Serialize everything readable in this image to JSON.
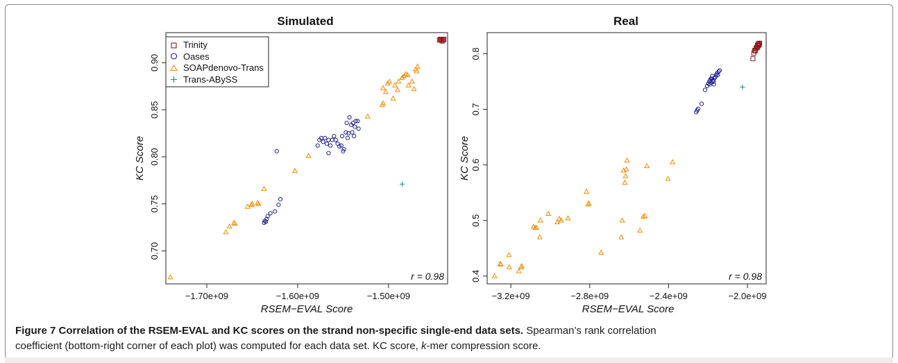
{
  "legend": {
    "items": [
      {
        "label": "Trinity",
        "color": "#8b1a1a",
        "marker": "square"
      },
      {
        "label": "Oases",
        "color": "#1f1f8f",
        "marker": "circle"
      },
      {
        "label": "SOAPdenovo-Trans",
        "color": "#f08c00",
        "marker": "triangle"
      },
      {
        "label": "Trans-ABySS",
        "color": "#0e8a8a",
        "marker": "plus"
      }
    ]
  },
  "caption": {
    "label": "Figure 7",
    "title": "Correlation of the RSEM-EVAL and KC scores on the strand non-specific single-end data sets.",
    "text_line1": "Spearman’s rank correlation",
    "text_line2": "coefficient (bottom-right corner of each plot) was computed for each data set. KC score, ",
    "kmer": "k",
    "text_tail": "-mer compression score."
  },
  "chart_data": [
    {
      "type": "scatter",
      "title": "Simulated",
      "xlabel": "RSEM−EVAL Score",
      "ylabel": "KC Score",
      "xlim": [
        -1745000000.0,
        -1435000000.0
      ],
      "ylim": [
        0.665,
        0.932
      ],
      "xticks": [
        -1700000000.0,
        -1600000000.0,
        -1500000000.0
      ],
      "xticklabels": [
        "−1.70e+09",
        "−1.60e+09",
        "−1.50e+09"
      ],
      "yticks": [
        0.7,
        0.75,
        0.8,
        0.85,
        0.9
      ],
      "yticklabels": [
        "0.70",
        "0.75",
        "0.80",
        "0.85",
        "0.90"
      ],
      "annotation": "r = 0.98",
      "legend": "top-left",
      "series": [
        {
          "name": "Trinity",
          "points": [
            [
              -1443000000.0,
              0.925
            ],
            [
              -1442000000.0,
              0.924
            ],
            [
              -1441000000.0,
              0.925
            ],
            [
              -1440000000.0,
              0.924
            ],
            [
              -1444000000.0,
              0.924
            ],
            [
              -1441000000.0,
              0.923
            ],
            [
              -1439000000.0,
              0.925
            ],
            [
              -1442000000.0,
              0.925
            ]
          ]
        },
        {
          "name": "Oases",
          "points": [
            [
              -1623000000.0,
              0.806
            ],
            [
              -1619000000.0,
              0.755
            ],
            [
              -1621000000.0,
              0.749
            ],
            [
              -1625000000.0,
              0.742
            ],
            [
              -1630000000.0,
              0.74
            ],
            [
              -1633000000.0,
              0.737
            ],
            [
              -1634000000.0,
              0.734
            ],
            [
              -1636000000.0,
              0.732
            ],
            [
              -1637000000.0,
              0.73
            ],
            [
              -1635000000.0,
              0.731
            ],
            [
              -1576000000.0,
              0.818
            ],
            [
              -1574000000.0,
              0.82
            ],
            [
              -1572000000.0,
              0.816
            ],
            [
              -1570000000.0,
              0.82
            ],
            [
              -1568000000.0,
              0.814
            ],
            [
              -1566000000.0,
              0.818
            ],
            [
              -1564000000.0,
              0.812
            ],
            [
              -1562000000.0,
              0.818
            ],
            [
              -1560000000.0,
              0.822
            ],
            [
              -1558000000.0,
              0.818
            ],
            [
              -1556000000.0,
              0.814
            ],
            [
              -1554000000.0,
              0.811
            ],
            [
              -1552000000.0,
              0.812
            ],
            [
              -1551000000.0,
              0.822
            ],
            [
              -1549000000.0,
              0.808
            ],
            [
              -1547000000.0,
              0.826
            ],
            [
              -1546000000.0,
              0.836
            ],
            [
              -1545000000.0,
              0.82
            ],
            [
              -1543000000.0,
              0.842
            ],
            [
              -1541000000.0,
              0.834
            ],
            [
              -1539000000.0,
              0.836
            ],
            [
              -1537000000.0,
              0.832
            ],
            [
              -1536000000.0,
              0.838
            ],
            [
              -1534000000.0,
              0.838
            ],
            [
              -1533000000.0,
              0.83
            ],
            [
              -1544000000.0,
              0.825
            ],
            [
              -1566000000.0,
              0.804
            ],
            [
              -1578000000.0,
              0.812
            ],
            [
              -1550000000.0,
              0.806
            ],
            [
              -1540000000.0,
              0.826
            ],
            [
              -1538000000.0,
              0.822
            ]
          ]
        },
        {
          "name": "SOAPdenovo-Trans",
          "points": [
            [
              -1740000000.0,
              0.672
            ],
            [
              -1679000000.0,
              0.72
            ],
            [
              -1675000000.0,
              0.726
            ],
            [
              -1670000000.0,
              0.73
            ],
            [
              -1669000000.0,
              0.729
            ],
            [
              -1655000000.0,
              0.747
            ],
            [
              -1651000000.0,
              0.749
            ],
            [
              -1650000000.0,
              0.75
            ],
            [
              -1644000000.0,
              0.751
            ],
            [
              -1643000000.0,
              0.75
            ],
            [
              -1637000000.0,
              0.766
            ],
            [
              -1603000000.0,
              0.785
            ],
            [
              -1588000000.0,
              0.801
            ],
            [
              -1523000000.0,
              0.843
            ],
            [
              -1507000000.0,
              0.855
            ],
            [
              -1506000000.0,
              0.857
            ],
            [
              -1506000000.0,
              0.873
            ],
            [
              -1503000000.0,
              0.869
            ],
            [
              -1501000000.0,
              0.878
            ],
            [
              -1499000000.0,
              0.88
            ],
            [
              -1495000000.0,
              0.862
            ],
            [
              -1493000000.0,
              0.876
            ],
            [
              -1490000000.0,
              0.871
            ],
            [
              -1489000000.0,
              0.88
            ],
            [
              -1485000000.0,
              0.884
            ],
            [
              -1483000000.0,
              0.886
            ],
            [
              -1481000000.0,
              0.888
            ],
            [
              -1479000000.0,
              0.887
            ],
            [
              -1478000000.0,
              0.876
            ],
            [
              -1474000000.0,
              0.88
            ],
            [
              -1472000000.0,
              0.872
            ],
            [
              -1470000000.0,
              0.893
            ],
            [
              -1468000000.0,
              0.896
            ],
            [
              -1469000000.0,
              0.891
            ],
            [
              -1485000000.0,
              0.884
            ]
          ]
        },
        {
          "name": "Trans-ABySS",
          "points": [
            [
              -1485000000.0,
              0.771
            ]
          ]
        }
      ]
    },
    {
      "type": "scatter",
      "title": "Real",
      "xlabel": "RSEM−EVAL Score",
      "ylabel": "KC Score",
      "xlim": [
        -3320000000.0,
        -1905000000.0
      ],
      "ylim": [
        0.386,
        0.838
      ],
      "xticks": [
        -3200000000.0,
        -2800000000.0,
        -2400000000.0,
        -2000000000.0
      ],
      "xticklabels": [
        "−3.2e+09",
        "−2.8e+09",
        "−2.4e+09",
        "−2.0e+09"
      ],
      "yticks": [
        0.4,
        0.5,
        0.6,
        0.7,
        0.8
      ],
      "yticklabels": [
        "0.4",
        "0.5",
        "0.6",
        "0.7",
        "0.8"
      ],
      "annotation": "r = 0.98",
      "series": [
        {
          "name": "Trinity",
          "points": [
            [
              -1972000000.0,
              0.791
            ],
            [
              -1968000000.0,
              0.801
            ],
            [
              -1963000000.0,
              0.806
            ],
            [
              -1960000000.0,
              0.805
            ],
            [
              -1956000000.0,
              0.81
            ],
            [
              -1952000000.0,
              0.812
            ],
            [
              -1949000000.0,
              0.815
            ],
            [
              -1946000000.0,
              0.817
            ],
            [
              -1943000000.0,
              0.818
            ],
            [
              -1940000000.0,
              0.816
            ],
            [
              -1938000000.0,
              0.819
            ],
            [
              -1950000000.0,
              0.811
            ],
            [
              -1945000000.0,
              0.814
            ]
          ]
        },
        {
          "name": "Oases",
          "points": [
            [
              -2260000000.0,
              0.695
            ],
            [
              -2255000000.0,
              0.698
            ],
            [
              -2250000000.0,
              0.701
            ],
            [
              -2232000000.0,
              0.71
            ],
            [
              -2215000000.0,
              0.735
            ],
            [
              -2205000000.0,
              0.742
            ],
            [
              -2198000000.0,
              0.746
            ],
            [
              -2193000000.0,
              0.75
            ],
            [
              -2188000000.0,
              0.752
            ],
            [
              -2184000000.0,
              0.748
            ],
            [
              -2180000000.0,
              0.755
            ],
            [
              -2176000000.0,
              0.752
            ],
            [
              -2172000000.0,
              0.75
            ],
            [
              -2168000000.0,
              0.756
            ],
            [
              -2163000000.0,
              0.758
            ],
            [
              -2158000000.0,
              0.762
            ],
            [
              -2154000000.0,
              0.765
            ],
            [
              -2150000000.0,
              0.762
            ],
            [
              -2146000000.0,
              0.768
            ],
            [
              -2141000000.0,
              0.77
            ],
            [
              -2190000000.0,
              0.745
            ],
            [
              -2186000000.0,
              0.755
            ],
            [
              -2178000000.0,
              0.76
            ],
            [
              -2170000000.0,
              0.745
            ]
          ]
        },
        {
          "name": "SOAPdenovo-Trans",
          "points": [
            [
              -3283000000.0,
              0.4
            ],
            [
              -3254000000.0,
              0.422
            ],
            [
              -3251000000.0,
              0.421
            ],
            [
              -3210000000.0,
              0.438
            ],
            [
              -3208000000.0,
              0.416
            ],
            [
              -3160000000.0,
              0.409
            ],
            [
              -3148000000.0,
              0.416
            ],
            [
              -3145000000.0,
              0.418
            ],
            [
              -3085000000.0,
              0.489
            ],
            [
              -3077000000.0,
              0.487
            ],
            [
              -3070000000.0,
              0.487
            ],
            [
              -3053000000.0,
              0.47
            ],
            [
              -3050000000.0,
              0.5
            ],
            [
              -3010000000.0,
              0.512
            ],
            [
              -2965000000.0,
              0.497
            ],
            [
              -2955000000.0,
              0.503
            ],
            [
              -2945000000.0,
              0.5
            ],
            [
              -2910000000.0,
              0.504
            ],
            [
              -2816000000.0,
              0.552
            ],
            [
              -2808000000.0,
              0.529
            ],
            [
              -2805000000.0,
              0.531
            ],
            [
              -2742000000.0,
              0.442
            ],
            [
              -2640000000.0,
              0.47
            ],
            [
              -2635000000.0,
              0.5
            ],
            [
              -2628000000.0,
              0.59
            ],
            [
              -2622000000.0,
              0.568
            ],
            [
              -2618000000.0,
              0.58
            ],
            [
              -2614000000.0,
              0.592
            ],
            [
              -2611000000.0,
              0.608
            ],
            [
              -2545000000.0,
              0.482
            ],
            [
              -2528000000.0,
              0.507
            ],
            [
              -2520000000.0,
              0.508
            ],
            [
              -2510000000.0,
              0.598
            ],
            [
              -2403000000.0,
              0.575
            ],
            [
              -2380000000.0,
              0.605
            ]
          ]
        },
        {
          "name": "Trans-ABySS",
          "points": [
            [
              -2025000000.0,
              0.74
            ]
          ]
        }
      ]
    }
  ]
}
